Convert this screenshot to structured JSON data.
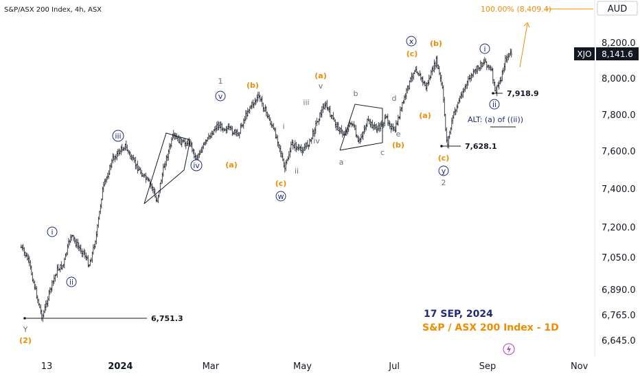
{
  "header": {
    "title": "S&P/ASX 200 Index, 4h, ASX"
  },
  "currency": "AUD",
  "ticker": {
    "symbol": "XJO",
    "last_price": "8,141.6"
  },
  "chart_data": {
    "type": "candlestick",
    "title": "S&P/ASX 200 Index, 4h, ASX",
    "y_axis": {
      "ticks": [
        {
          "value": 8200,
          "label": "8,200.0"
        },
        {
          "value": 8000,
          "label": "8,000.0"
        },
        {
          "value": 7800,
          "label": "7,800.0"
        },
        {
          "value": 7600,
          "label": "7,600.0"
        },
        {
          "value": 7400,
          "label": "7,400.0"
        },
        {
          "value": 7200,
          "label": "7,200.0"
        },
        {
          "value": 7050,
          "label": "7,050.0"
        },
        {
          "value": 6890,
          "label": "6,890.0"
        },
        {
          "value": 6765,
          "label": "6,765.0"
        },
        {
          "value": 6645,
          "label": "6,645.0"
        }
      ]
    },
    "x_axis": {
      "ticks": [
        {
          "date": "2023-11-13",
          "label": "13"
        },
        {
          "date": "2024-01-01",
          "label": "2024",
          "bold": true
        },
        {
          "date": "2024-03-01",
          "label": "Mar"
        },
        {
          "date": "2024-05-01",
          "label": "May"
        },
        {
          "date": "2024-07-01",
          "label": "Jul"
        },
        {
          "date": "2024-09-01",
          "label": "Sep"
        },
        {
          "date": "2024-11-01",
          "label": "Nov"
        }
      ]
    },
    "price_path": [
      {
        "date": "2023-10-27",
        "value": 7100
      },
      {
        "date": "2023-11-01",
        "value": 7030
      },
      {
        "date": "2023-11-06",
        "value": 6870
      },
      {
        "date": "2023-11-10",
        "value": 6751
      },
      {
        "date": "2023-11-15",
        "value": 6880
      },
      {
        "date": "2023-11-20",
        "value": 6990
      },
      {
        "date": "2023-11-24",
        "value": 7010
      },
      {
        "date": "2023-11-29",
        "value": 7160
      },
      {
        "date": "2023-12-04",
        "value": 7100
      },
      {
        "date": "2023-12-08",
        "value": 7070
      },
      {
        "date": "2023-12-11",
        "value": 7010
      },
      {
        "date": "2023-12-13",
        "value": 7060
      },
      {
        "date": "2023-12-16",
        "value": 7160
      },
      {
        "date": "2023-12-20",
        "value": 7390
      },
      {
        "date": "2023-12-27",
        "value": 7560
      },
      {
        "date": "2024-01-04",
        "value": 7630
      },
      {
        "date": "2024-01-09",
        "value": 7550
      },
      {
        "date": "2024-01-16",
        "value": 7470
      },
      {
        "date": "2024-01-22",
        "value": 7410
      },
      {
        "date": "2024-01-25",
        "value": 7330
      },
      {
        "date": "2024-01-30",
        "value": 7520
      },
      {
        "date": "2024-02-05",
        "value": 7680
      },
      {
        "date": "2024-02-12",
        "value": 7640
      },
      {
        "date": "2024-02-16",
        "value": 7650
      },
      {
        "date": "2024-02-20",
        "value": 7560
      },
      {
        "date": "2024-02-27",
        "value": 7650
      },
      {
        "date": "2024-03-05",
        "value": 7740
      },
      {
        "date": "2024-03-13",
        "value": 7720
      },
      {
        "date": "2024-03-19",
        "value": 7690
      },
      {
        "date": "2024-03-26",
        "value": 7830
      },
      {
        "date": "2024-04-02",
        "value": 7900
      },
      {
        "date": "2024-04-08",
        "value": 7790
      },
      {
        "date": "2024-04-15",
        "value": 7650
      },
      {
        "date": "2024-04-19",
        "value": 7500
      },
      {
        "date": "2024-04-24",
        "value": 7640
      },
      {
        "date": "2024-04-30",
        "value": 7600
      },
      {
        "date": "2024-05-06",
        "value": 7650
      },
      {
        "date": "2024-05-10",
        "value": 7750
      },
      {
        "date": "2024-05-16",
        "value": 7860
      },
      {
        "date": "2024-05-22",
        "value": 7760
      },
      {
        "date": "2024-05-28",
        "value": 7690
      },
      {
        "date": "2024-06-03",
        "value": 7760
      },
      {
        "date": "2024-06-07",
        "value": 7640
      },
      {
        "date": "2024-06-13",
        "value": 7760
      },
      {
        "date": "2024-06-20",
        "value": 7720
      },
      {
        "date": "2024-06-26",
        "value": 7780
      },
      {
        "date": "2024-07-01",
        "value": 7700
      },
      {
        "date": "2024-07-04",
        "value": 7790
      },
      {
        "date": "2024-07-10",
        "value": 7950
      },
      {
        "date": "2024-07-15",
        "value": 8060
      },
      {
        "date": "2024-07-22",
        "value": 7950
      },
      {
        "date": "2024-07-29",
        "value": 8100
      },
      {
        "date": "2024-08-02",
        "value": 7940
      },
      {
        "date": "2024-08-05",
        "value": 7628
      },
      {
        "date": "2024-08-09",
        "value": 7790
      },
      {
        "date": "2024-08-14",
        "value": 7900
      },
      {
        "date": "2024-08-20",
        "value": 8000
      },
      {
        "date": "2024-08-26",
        "value": 8060
      },
      {
        "date": "2024-08-30",
        "value": 8100
      },
      {
        "date": "2024-09-04",
        "value": 8030
      },
      {
        "date": "2024-09-06",
        "value": 7919
      },
      {
        "date": "2024-09-10",
        "value": 8000
      },
      {
        "date": "2024-09-13",
        "value": 8110
      },
      {
        "date": "2024-09-17",
        "value": 8141.6
      }
    ],
    "levels": [
      {
        "label": "6,751.3",
        "value": 6751.3
      },
      {
        "label": "7,628.1",
        "value": 7628.1
      },
      {
        "label": "7,918.9",
        "value": 7918.9
      },
      {
        "label": "100.00% (8,409.4)",
        "value": 8409.4
      }
    ],
    "wave_labels": [
      {
        "text": "Y",
        "style": "gray"
      },
      {
        "text": "(2)",
        "style": "orange"
      },
      {
        "text": "i",
        "style": "circle"
      },
      {
        "text": "ii",
        "style": "circle"
      },
      {
        "text": "iii",
        "style": "circle"
      },
      {
        "text": "iv",
        "style": "circle"
      },
      {
        "text": "v",
        "style": "circle"
      },
      {
        "text": "1",
        "style": "gray"
      },
      {
        "text": "(a)",
        "style": "orange"
      },
      {
        "text": "(b)",
        "style": "orange"
      },
      {
        "text": "(c)",
        "style": "orange"
      },
      {
        "text": "w",
        "style": "circle"
      },
      {
        "text": "i",
        "style": "gray"
      },
      {
        "text": "ii",
        "style": "gray"
      },
      {
        "text": "iii",
        "style": "gray"
      },
      {
        "text": "iv",
        "style": "gray"
      },
      {
        "text": "v",
        "style": "gray"
      },
      {
        "text": "(a)",
        "style": "orange"
      },
      {
        "text": "a",
        "style": "gray"
      },
      {
        "text": "b",
        "style": "gray"
      },
      {
        "text": "c",
        "style": "gray"
      },
      {
        "text": "d",
        "style": "gray"
      },
      {
        "text": "e",
        "style": "gray"
      },
      {
        "text": "(b)",
        "style": "orange"
      },
      {
        "text": "(c)",
        "style": "orange"
      },
      {
        "text": "x",
        "style": "circle"
      },
      {
        "text": "(b)",
        "style": "orange"
      },
      {
        "text": "(a)",
        "style": "orange"
      },
      {
        "text": "(c)",
        "style": "orange"
      },
      {
        "text": "y",
        "style": "circle"
      },
      {
        "text": "2",
        "style": "gray"
      },
      {
        "text": "i",
        "style": "circle"
      },
      {
        "text": "ii",
        "style": "circle"
      }
    ],
    "alt_annotation": "ALT: (a) of ((ii))",
    "date_note": "17 SEP, 2024",
    "subtitle_note": "S&P / ASX 200 Index - 1D"
  }
}
